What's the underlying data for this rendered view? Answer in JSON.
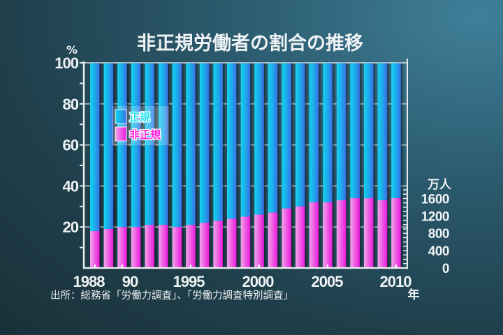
{
  "chart_data": {
    "type": "bar",
    "stacked": true,
    "title": "非正規労働者の割合の推移",
    "ylabel": "%",
    "ylim": [
      0,
      100
    ],
    "yticks": [
      20,
      40,
      60,
      80,
      100
    ],
    "y_minor_ticks": [
      10,
      30,
      50,
      70,
      90
    ],
    "xlabel": "年",
    "categories": [
      "1988",
      "1989",
      "1990",
      "1991",
      "1992",
      "1993",
      "1994",
      "1995",
      "1996",
      "1997",
      "1998",
      "1999",
      "2000",
      "2001",
      "2002",
      "2003",
      "2004",
      "2005",
      "2006",
      "2007",
      "2008",
      "2009",
      "2010"
    ],
    "xtick_labels": [
      {
        "category": "1988",
        "label": "1988"
      },
      {
        "category": "1990",
        "label": "90"
      },
      {
        "category": "1995",
        "label": "1995"
      },
      {
        "category": "2000",
        "label": "2000"
      },
      {
        "category": "2005",
        "label": "2005"
      },
      {
        "category": "2010",
        "label": "2010"
      }
    ],
    "series": [
      {
        "name": "非正規",
        "color": "#ee22dd",
        "values": [
          18,
          19,
          20,
          20,
          21,
          21,
          20,
          21,
          22,
          23,
          24,
          25,
          26,
          27,
          29,
          30,
          32,
          32,
          33,
          34,
          34,
          33,
          34
        ]
      },
      {
        "name": "正規",
        "color": "#1fa6ec",
        "values": [
          82,
          81,
          80,
          80,
          79,
          79,
          80,
          79,
          78,
          77,
          76,
          75,
          74,
          73,
          71,
          70,
          68,
          68,
          67,
          66,
          66,
          67,
          66
        ]
      }
    ],
    "legend": {
      "placement": "top-left",
      "entries": [
        {
          "label": "正規",
          "color": "#1fa6ec",
          "text_color": "#22e0f0"
        },
        {
          "label": "非正規",
          "color": "#ee22dd",
          "text_color": "#ff22dd"
        }
      ]
    },
    "secondary_axis": {
      "unit": "万人",
      "ticks": [
        0,
        400,
        800,
        1200,
        1600
      ],
      "range": [
        0,
        1800
      ]
    },
    "grid": true,
    "source": "出所：総務省「労働力調査」、「労働力調査特別調査」"
  }
}
